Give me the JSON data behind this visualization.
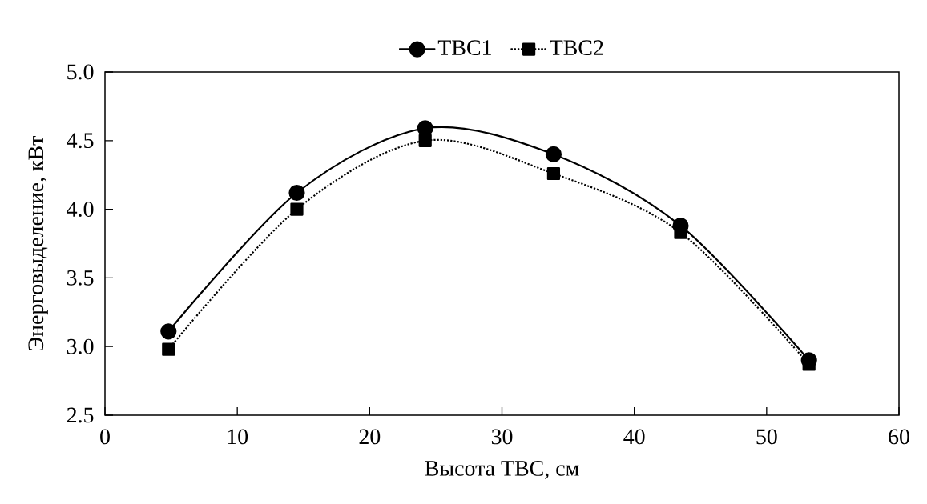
{
  "chart_data": {
    "type": "line",
    "xlabel": "Высота ТВС, см",
    "ylabel": "Энерговыделение, кВт",
    "x": [
      4.8,
      14.5,
      24.2,
      33.9,
      43.5,
      53.2
    ],
    "series": [
      {
        "name": "ТВС1",
        "color": "#000000",
        "marker": "circle",
        "line_style": "solid",
        "values": [
          3.11,
          4.12,
          4.59,
          4.4,
          3.88,
          2.9
        ]
      },
      {
        "name": "ТВС2",
        "color": "#000000",
        "marker": "square",
        "line_style": "dotted",
        "values": [
          2.98,
          4.0,
          4.5,
          4.26,
          3.83,
          2.87
        ]
      }
    ],
    "xlim": [
      0,
      60
    ],
    "xticks": [
      0,
      10,
      20,
      30,
      40,
      50,
      60
    ],
    "ylim": [
      2.5,
      5.0
    ],
    "yticks": [
      {
        "value": 2.5,
        "label": "2.5"
      },
      {
        "value": 3.0,
        "label": "3.0"
      },
      {
        "value": 3.5,
        "label": "3.5"
      },
      {
        "value": 4.0,
        "label": "4.0"
      },
      {
        "value": 4.5,
        "label": "4.5"
      },
      {
        "value": 5.0,
        "label": "5.0"
      }
    ],
    "legend": "top",
    "grid": false
  }
}
